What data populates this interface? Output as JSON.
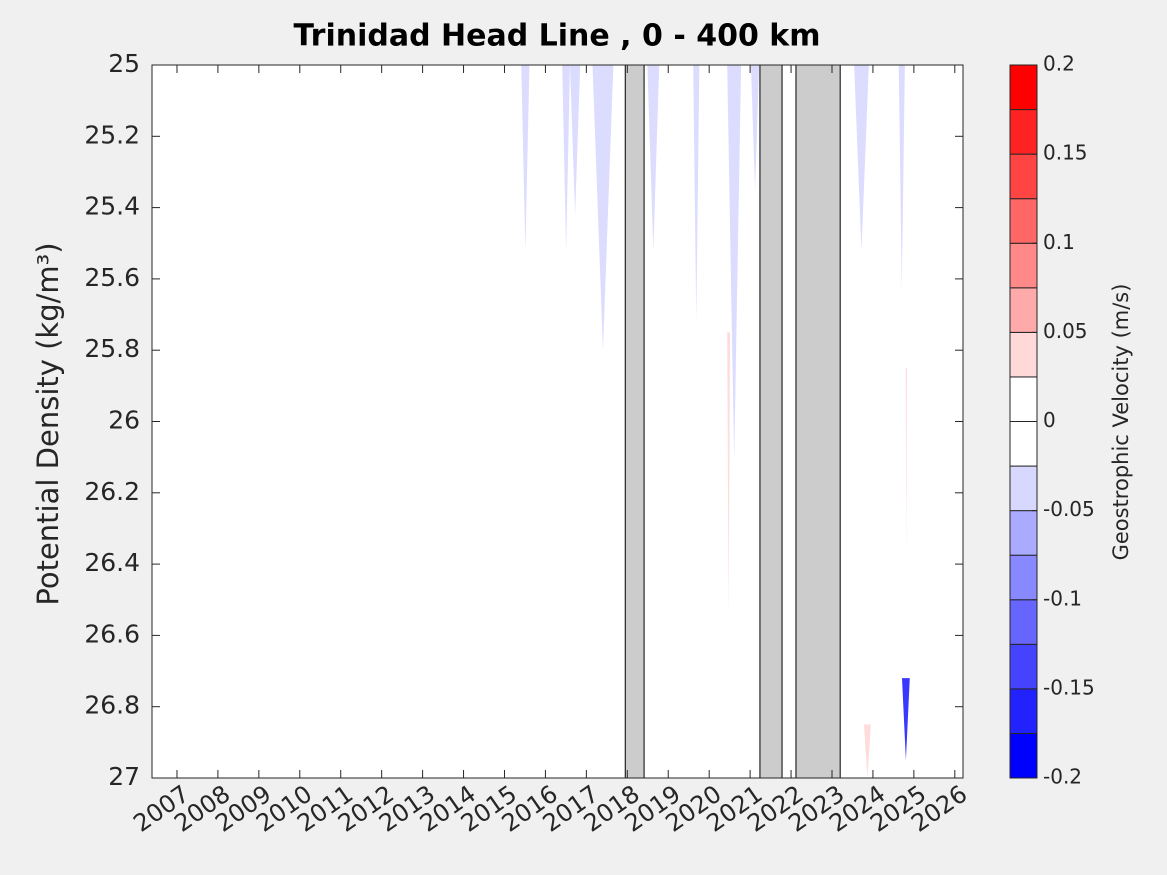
{
  "chart_data": {
    "type": "contour",
    "title": "Trinidad Head Line , 0 - 400 km",
    "ylabel": "Potential Density (kg/m³)",
    "colorbar_label": "Geostrophic Velocity (m/s)",
    "xlim": [
      2006.39,
      2026.2
    ],
    "xticks": [
      2007,
      2008,
      2009,
      2010,
      2011,
      2012,
      2013,
      2014,
      2015,
      2016,
      2017,
      2018,
      2019,
      2020,
      2021,
      2022,
      2023,
      2024,
      2025,
      2026
    ],
    "ylim": [
      25,
      27
    ],
    "reverse_y": true,
    "yticks": [
      25,
      25.2,
      25.4,
      25.6,
      25.8,
      26,
      26.2,
      26.4,
      26.6,
      26.8,
      27
    ],
    "gaps": [
      [
        2017.95,
        2018.41
      ],
      [
        2021.24,
        2021.78
      ],
      [
        2022.12,
        2023.2
      ]
    ],
    "gap_color": "#cccccc",
    "clevels": [
      -0.2,
      -0.175,
      -0.15,
      -0.125,
      -0.1,
      -0.075,
      -0.05,
      -0.025,
      0,
      0.025,
      0.05,
      0.075,
      0.1,
      0.125,
      0.15,
      0.175,
      0.2
    ],
    "colors": [
      "#0000ff",
      "#2222ff",
      "#4444ff",
      "#6666ff",
      "#8888ff",
      "#aaaaff",
      "#d8d8ff",
      "#ffffff",
      "#ffffff",
      "#ffd8d8",
      "#ffaaaa",
      "#ff8888",
      "#ff6666",
      "#ff4444",
      "#ff2222",
      "#ff0000"
    ],
    "cticks": [
      -0.2,
      -0.15,
      -0.1,
      -0.05,
      0,
      0.05,
      0.1,
      0.15,
      0.2
    ],
    "streaks": [
      {
        "x0": 2015.41,
        "x1": 2015.61,
        "top": 25,
        "bottom": 25.52,
        "value": -0.03
      },
      {
        "x0": 2016.41,
        "x1": 2016.6,
        "top": 25,
        "bottom": 25.52,
        "value": -0.03
      },
      {
        "x0": 2016.6,
        "x1": 2016.85,
        "top": 25,
        "bottom": 25.42,
        "value": -0.03
      },
      {
        "x0": 2017.15,
        "x1": 2017.66,
        "top": 25,
        "bottom": 25.8,
        "value": -0.03
      },
      {
        "x0": 2018.49,
        "x1": 2018.78,
        "top": 25,
        "bottom": 25.52,
        "value": -0.03
      },
      {
        "x0": 2019.61,
        "x1": 2019.76,
        "top": 25,
        "bottom": 25.72,
        "value": -0.03
      },
      {
        "x0": 2020.44,
        "x1": 2020.78,
        "top": 25,
        "bottom": 26.11,
        "value": -0.03
      },
      {
        "x0": 2021.02,
        "x1": 2021.22,
        "top": 25,
        "bottom": 25.35,
        "value": -0.03
      },
      {
        "x0": 2023.54,
        "x1": 2023.9,
        "top": 25,
        "bottom": 25.52,
        "value": -0.03
      },
      {
        "x0": 2024.63,
        "x1": 2024.78,
        "top": 25,
        "bottom": 25.63,
        "value": -0.03
      },
      {
        "x0": 2020.44,
        "x1": 2020.51,
        "top": 25.75,
        "bottom": 26.55,
        "value": 0.03
      },
      {
        "x0": 2024.8,
        "x1": 2024.83,
        "top": 25.85,
        "bottom": 26.4,
        "value": 0.03
      },
      {
        "x0": 2023.78,
        "x1": 2023.95,
        "top": 26.85,
        "bottom": 27,
        "value": 0.03
      },
      {
        "x0": 2024.71,
        "x1": 2024.9,
        "top": 26.72,
        "bottom": 26.95,
        "value": -0.15
      }
    ]
  }
}
